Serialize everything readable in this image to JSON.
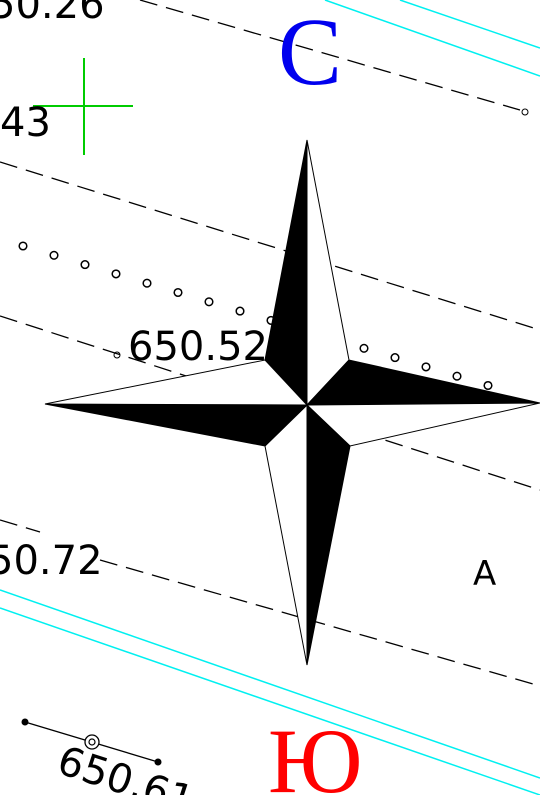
{
  "compass": {
    "north_label": "С",
    "south_label": "Ю",
    "north_color": "#0000ee",
    "south_color": "#ff0000"
  },
  "elevations": {
    "top_left": "50.26",
    "left_upper": "43",
    "center": "650.52",
    "left_lower": "50.72",
    "bottom": "650.61"
  },
  "marker_letter": "A",
  "colors": {
    "road_lines": "#00f0f0",
    "survey_cross": "#00cc00",
    "ink": "#000000"
  }
}
